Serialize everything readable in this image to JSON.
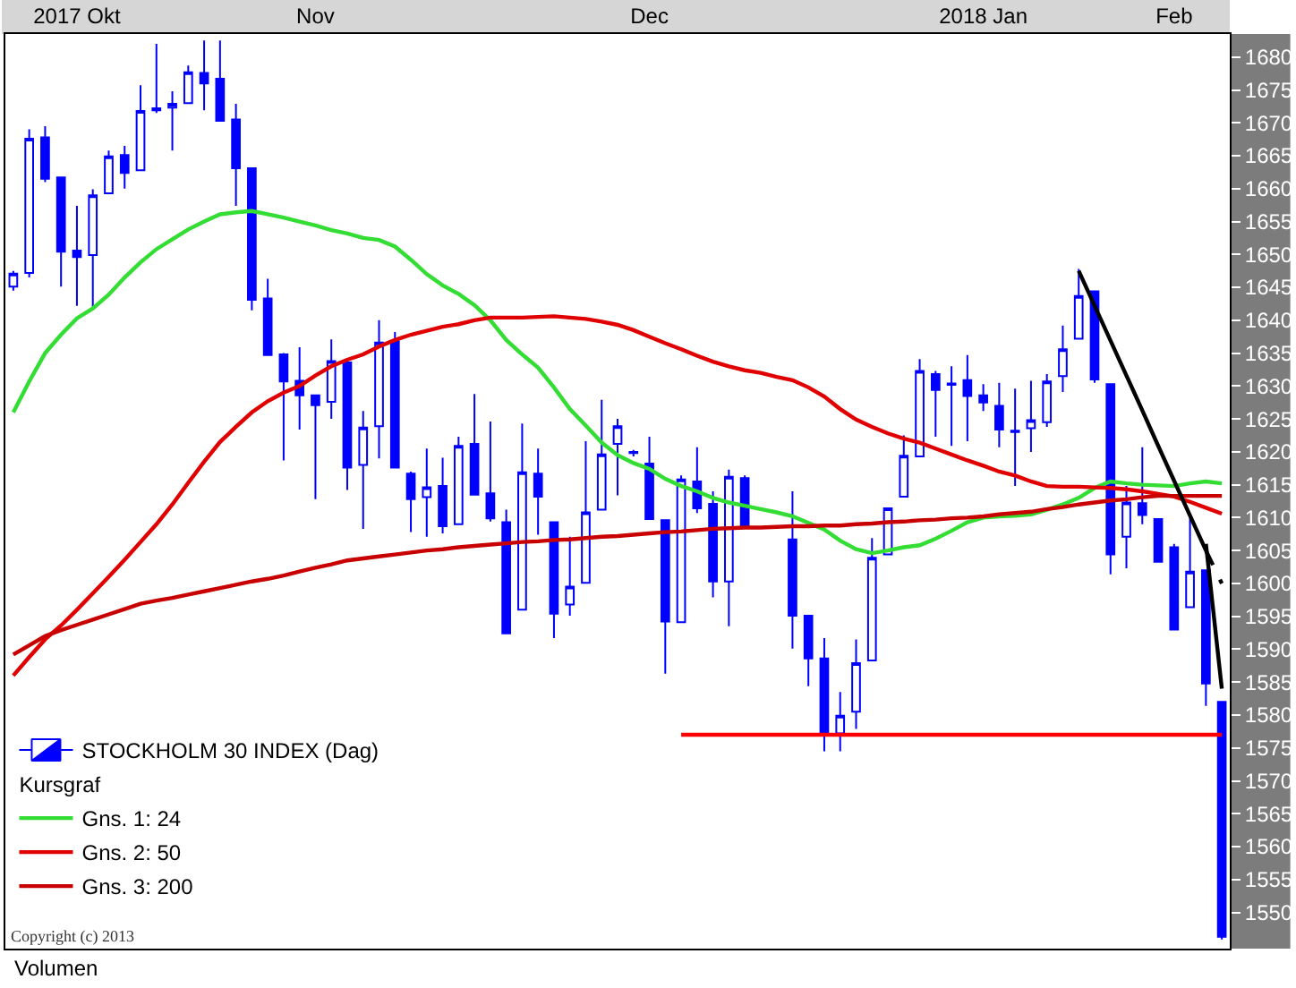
{
  "chart_data": {
    "type": "candlestick",
    "categories": [
      null,
      null,
      null,
      null,
      "2017 Okt",
      null,
      null,
      null,
      null,
      null,
      null,
      null,
      null,
      null,
      null,
      null,
      null,
      null,
      null,
      "Nov",
      null,
      null,
      null,
      null,
      null,
      null,
      null,
      null,
      null,
      null,
      null,
      null,
      null,
      null,
      null,
      null,
      null,
      null,
      null,
      null,
      "Dec",
      null,
      null,
      null,
      null,
      null,
      null,
      null,
      null,
      null,
      null,
      null,
      null,
      null,
      null,
      null,
      null,
      null,
      null,
      null,
      null,
      "2018 Jan",
      null,
      null,
      null,
      null,
      null,
      null,
      null,
      null,
      null,
      null,
      null,
      "Feb",
      null,
      null,
      null
    ],
    "series": [
      {
        "name": "STOCKHOLM 30 INDEX (Dag)",
        "color": "#0000ff",
        "ohlc": [
          [
            1645.1,
            1647.5,
            1644.5,
            1647.1
          ],
          [
            1647.2,
            1669,
            1646.5,
            1667.6
          ],
          [
            1667.8,
            1669.5,
            1661,
            1661.5
          ],
          [
            1661.7,
            1661.7,
            1645.1,
            1650.4
          ],
          [
            1650.6,
            1657.4,
            1642.2,
            1649.6
          ],
          [
            1649.9,
            1659.9,
            1641.8,
            1659
          ],
          [
            1659.3,
            1665.8,
            1659.3,
            1664.9
          ],
          [
            1665.1,
            1666.5,
            1660,
            1662.4
          ],
          [
            1662.8,
            1675.7,
            1662.8,
            1671.8
          ],
          [
            1672.2,
            1682,
            1671.5,
            1671.9
          ],
          [
            1672.3,
            1674.8,
            1665.8,
            1672.9
          ],
          [
            1673,
            1678.7,
            1673,
            1677.7
          ],
          [
            1677.6,
            1682.5,
            1671.9,
            1676
          ],
          [
            1676.7,
            1682.5,
            1670.3,
            1670.3
          ],
          [
            1670.5,
            1672.9,
            1657.4,
            1663.1
          ],
          [
            1663.1,
            1663.1,
            1641.5,
            1643.1
          ],
          [
            1643.3,
            1646.3,
            1634.7,
            1634.7
          ],
          [
            1634.8,
            1635,
            1618.7,
            1630.7
          ],
          [
            1630.8,
            1635.9,
            1623.4,
            1628.6
          ],
          [
            1628.6,
            1628.6,
            1612.8,
            1627.1
          ],
          [
            1627.6,
            1637.1,
            1625,
            1633.8
          ],
          [
            1633.6,
            1633.6,
            1614.2,
            1617.6
          ],
          [
            1618,
            1626.2,
            1608.3,
            1623.7
          ],
          [
            1623.9,
            1640,
            1619,
            1636.6
          ],
          [
            1636.8,
            1638.2,
            1617.6,
            1617.6
          ],
          [
            1616.7,
            1617,
            1607.8,
            1612.8
          ],
          [
            1613.1,
            1620.5,
            1607.1,
            1614.6
          ],
          [
            1614.8,
            1619.1,
            1607.6,
            1608.7
          ],
          [
            1609,
            1622.3,
            1609,
            1620.9
          ],
          [
            1621.2,
            1628.8,
            1613.5,
            1613.5
          ],
          [
            1613.7,
            1624.6,
            1609.4,
            1609.9
          ],
          [
            1609.3,
            1611.2,
            1592.4,
            1592.4
          ],
          [
            1596,
            1624.3,
            1596,
            1616.9
          ],
          [
            1616.7,
            1620.5,
            1607.4,
            1613.2
          ],
          [
            1609.3,
            1609.3,
            1591.7,
            1595.4
          ],
          [
            1596.8,
            1607.1,
            1595.1,
            1599.5
          ],
          [
            1600.1,
            1621.6,
            1600.1,
            1610.8
          ],
          [
            1611.2,
            1627.9,
            1611.2,
            1619.6
          ],
          [
            1621.2,
            1625,
            1613.4,
            1623.9
          ],
          [
            1620,
            1620.3,
            1619.3,
            1619.8
          ],
          [
            1618.2,
            1622.3,
            1609.8,
            1609.8
          ],
          [
            1609.6,
            1609.6,
            1586.3,
            1594.2
          ],
          [
            1594.1,
            1616.4,
            1594.1,
            1615.8
          ],
          [
            1615.5,
            1620.7,
            1610.7,
            1611.4
          ],
          [
            1612.1,
            1614,
            1597.9,
            1600.3
          ],
          [
            1600.3,
            1617.3,
            1593.5,
            1616.2
          ],
          [
            1616,
            1616.4,
            1608.7,
            1608.7
          ],
          null,
          null,
          [
            1606.7,
            1614,
            1590.1,
            1595.1
          ],
          [
            1595.1,
            1595.1,
            1584.4,
            1588.6
          ],
          [
            1588.6,
            1591.7,
            1574.5,
            1577
          ],
          [
            1577.2,
            1583.5,
            1574.5,
            1579.9
          ],
          [
            1580.5,
            1591.5,
            1577.9,
            1587.9
          ],
          [
            1588.3,
            1606.9,
            1588.3,
            1603.9
          ],
          [
            1604.4,
            1611.4,
            1604.4,
            1611.4
          ],
          [
            1613.2,
            1622.5,
            1613.2,
            1619.4
          ],
          [
            1619.3,
            1634.1,
            1619.3,
            1632.3
          ],
          [
            1631.8,
            1632.3,
            1622.3,
            1629.4
          ],
          [
            1630.4,
            1633,
            1620.9,
            1630.2
          ],
          [
            1630.9,
            1634.7,
            1621.6,
            1628.5
          ],
          [
            1628.6,
            1630.3,
            1626.2,
            1627.5
          ],
          [
            1627,
            1630.5,
            1620.7,
            1623.4
          ],
          [
            1623.2,
            1629.6,
            1614.8,
            1623
          ],
          [
            1623.6,
            1630.8,
            1620,
            1624.8
          ],
          [
            1624.5,
            1631.8,
            1623.8,
            1630.7
          ],
          [
            1631.5,
            1639.2,
            1629.1,
            1635.6
          ],
          [
            1637.2,
            1647.8,
            1637.2,
            1643.7
          ],
          [
            1644.4,
            1644.4,
            1630.5,
            1631
          ],
          [
            1630.3,
            1630.3,
            1601.4,
            1604.4
          ],
          [
            1607.1,
            1614.8,
            1602.3,
            1612.3
          ],
          [
            1612.2,
            1620.7,
            1609,
            1610.4
          ],
          [
            1609.8,
            1609.8,
            1603.3,
            1603.3
          ],
          [
            1605.5,
            1606,
            1593,
            1593
          ],
          [
            1596.4,
            1610,
            1596.4,
            1601.8
          ],
          [
            1602,
            1602,
            1581.4,
            1584.8
          ],
          [
            1582,
            1582,
            1545.9,
            1546.3
          ]
        ]
      },
      {
        "name": "Gns. 1: 24",
        "type": "line",
        "color": "#33dd33",
        "values": [
          1626,
          1630.7,
          1635,
          1637.8,
          1640.3,
          1641.8,
          1643.9,
          1646.5,
          1648.8,
          1650.8,
          1652.3,
          1653.8,
          1655,
          1656.1,
          1656.4,
          1656.6,
          1656.1,
          1655.6,
          1655,
          1654.4,
          1653.7,
          1653.2,
          1652.5,
          1652.2,
          1651.2,
          1649.2,
          1647,
          1645.3,
          1644,
          1642.3,
          1640,
          1637,
          1634.8,
          1632.8,
          1629.8,
          1626.5,
          1624,
          1621.4,
          1619.5,
          1618.3,
          1617.4,
          1615.9,
          1614.8,
          1614,
          1613,
          1612.3,
          1611.8,
          1611.3,
          1610.8,
          1610.2,
          1609.2,
          1608.2,
          1606.5,
          1605.2,
          1604.6,
          1605,
          1605.5,
          1605.8,
          1606.8,
          1608,
          1609.3,
          1610,
          1610.2,
          1610.3,
          1610.5,
          1611.2,
          1612,
          1613,
          1614.5,
          1615.5,
          1615.2,
          1615,
          1614.9,
          1614.8,
          1615.2,
          1615.5,
          1615.2
        ]
      },
      {
        "name": "Gns. 2: 50",
        "type": "line",
        "color": "#e00000",
        "values": [
          1586,
          1588.8,
          1591.5,
          1593.6,
          1596,
          1598.5,
          1601,
          1603.6,
          1606.3,
          1609,
          1612,
          1615.3,
          1618.5,
          1621.5,
          1623.8,
          1626,
          1627.7,
          1629,
          1630,
          1631.6,
          1633,
          1634,
          1634.8,
          1636,
          1637,
          1637.8,
          1638.4,
          1639,
          1639.4,
          1640,
          1640.4,
          1640.4,
          1640.4,
          1640.5,
          1640.6,
          1640.4,
          1640.2,
          1639.8,
          1639.3,
          1638.5,
          1637.5,
          1636.5,
          1635.6,
          1634.6,
          1633.7,
          1633,
          1632.4,
          1632,
          1631.4,
          1630.9,
          1629.8,
          1628.4,
          1626.5,
          1624.9,
          1623.8,
          1622.8,
          1622,
          1621.4,
          1620.5,
          1619.6,
          1618.7,
          1617.9,
          1617,
          1616.4,
          1615.5,
          1614.8,
          1614.7,
          1614.7,
          1614.6,
          1614.5,
          1614.3,
          1614,
          1613.6,
          1613.2,
          1612.4,
          1611.5,
          1610.6
        ]
      },
      {
        "name": "Gns. 3: 200",
        "type": "line",
        "color": "#c80000",
        "values": [
          1589.2,
          1590.6,
          1592,
          1592.9,
          1593.7,
          1594.5,
          1595.3,
          1596.1,
          1596.9,
          1597.4,
          1597.8,
          1598.3,
          1598.8,
          1599.3,
          1599.8,
          1600.3,
          1600.7,
          1601.2,
          1601.8,
          1602.4,
          1602.9,
          1603.5,
          1603.8,
          1604.1,
          1604.4,
          1604.7,
          1605,
          1605.2,
          1605.5,
          1605.7,
          1605.9,
          1606.1,
          1606.3,
          1606.4,
          1606.6,
          1606.7,
          1606.9,
          1607.1,
          1607.2,
          1607.4,
          1607.6,
          1607.8,
          1607.9,
          1608.1,
          1608.3,
          1608.4,
          1608.5,
          1608.5,
          1608.6,
          1608.7,
          1608.7,
          1608.8,
          1608.8,
          1609,
          1609.1,
          1609.3,
          1609.4,
          1609.6,
          1609.7,
          1609.9,
          1610,
          1610.2,
          1610.5,
          1610.7,
          1610.9,
          1611.3,
          1611.6,
          1612,
          1612.3,
          1612.6,
          1612.8,
          1613.1,
          1613.3,
          1613.3,
          1613.3,
          1613.3,
          1613.3
        ]
      },
      {
        "type": "line",
        "color": "#000000",
        "values": [
          null,
          null,
          null,
          null,
          null,
          null,
          null,
          null,
          null,
          null,
          null,
          null,
          null,
          null,
          null,
          null,
          null,
          null,
          null,
          null,
          null,
          null,
          null,
          null,
          null,
          null,
          null,
          null,
          null,
          null,
          null,
          null,
          null,
          null,
          null,
          null,
          null,
          null,
          null,
          null,
          null,
          null,
          null,
          null,
          null,
          null,
          null,
          null,
          null,
          null,
          null,
          null,
          null,
          null,
          null,
          null,
          null,
          null,
          null,
          null,
          null,
          null,
          null,
          null,
          null,
          null,
          null,
          1647.5,
          1642.2,
          1636.9,
          1631.6,
          1626.3,
          1620.9,
          1615.6,
          1610.3,
          1605,
          null
        ]
      },
      {
        "type": "line",
        "color": "#000000",
        "line_style": "dashed",
        "values": [
          null,
          null,
          null,
          null,
          null,
          null,
          null,
          null,
          null,
          null,
          null,
          null,
          null,
          null,
          null,
          null,
          null,
          null,
          null,
          null,
          null,
          null,
          null,
          null,
          null,
          null,
          null,
          null,
          null,
          null,
          null,
          null,
          null,
          null,
          null,
          null,
          null,
          null,
          null,
          null,
          null,
          null,
          null,
          null,
          null,
          null,
          null,
          null,
          null,
          null,
          null,
          null,
          null,
          null,
          null,
          null,
          null,
          null,
          null,
          null,
          null,
          null,
          null,
          null,
          null,
          null,
          null,
          null,
          null,
          null,
          null,
          null,
          null,
          null,
          null,
          1605,
          1600
        ]
      },
      {
        "type": "line",
        "color": "#000000",
        "values": [
          null,
          null,
          null,
          null,
          null,
          null,
          null,
          null,
          null,
          null,
          null,
          null,
          null,
          null,
          null,
          null,
          null,
          null,
          null,
          null,
          null,
          null,
          null,
          null,
          null,
          null,
          null,
          null,
          null,
          null,
          null,
          null,
          null,
          null,
          null,
          null,
          null,
          null,
          null,
          null,
          null,
          null,
          null,
          null,
          null,
          null,
          null,
          null,
          null,
          null,
          null,
          null,
          null,
          null,
          null,
          null,
          null,
          null,
          null,
          null,
          null,
          null,
          null,
          null,
          null,
          null,
          null,
          null,
          null,
          null,
          null,
          null,
          null,
          null,
          null,
          1606,
          1584
        ]
      },
      {
        "type": "line",
        "color": "#ff0000",
        "values": [
          null,
          null,
          null,
          null,
          null,
          null,
          null,
          null,
          null,
          null,
          null,
          null,
          null,
          null,
          null,
          null,
          null,
          null,
          null,
          null,
          null,
          null,
          null,
          null,
          null,
          null,
          null,
          null,
          null,
          null,
          null,
          null,
          null,
          null,
          null,
          null,
          null,
          null,
          null,
          null,
          null,
          null,
          1577,
          1577,
          1577,
          1577,
          1577,
          1577,
          1577,
          1577,
          1577,
          1577,
          1577,
          1577,
          1577,
          1577,
          1577,
          1577,
          1577,
          1577,
          1577,
          1577,
          1577,
          1577,
          1577,
          1577,
          1577,
          1577,
          1577,
          1577,
          1577,
          1577,
          1577,
          1577,
          1577,
          1577,
          1577
        ]
      }
    ],
    "legend_title": "Kursgraf",
    "legend": "bottom left",
    "ylim": [
      1544.5,
      1683.5
    ],
    "yticks": [
      1550,
      1555,
      1560,
      1565,
      1570,
      1575,
      1580,
      1585,
      1590,
      1595,
      1600,
      1605,
      1610,
      1615,
      1620,
      1625,
      1630,
      1635,
      1640,
      1645,
      1650,
      1655,
      1660,
      1665,
      1670,
      1675,
      1680
    ],
    "annotations": [
      "Copyright (c) 2013",
      "Volumen"
    ]
  }
}
